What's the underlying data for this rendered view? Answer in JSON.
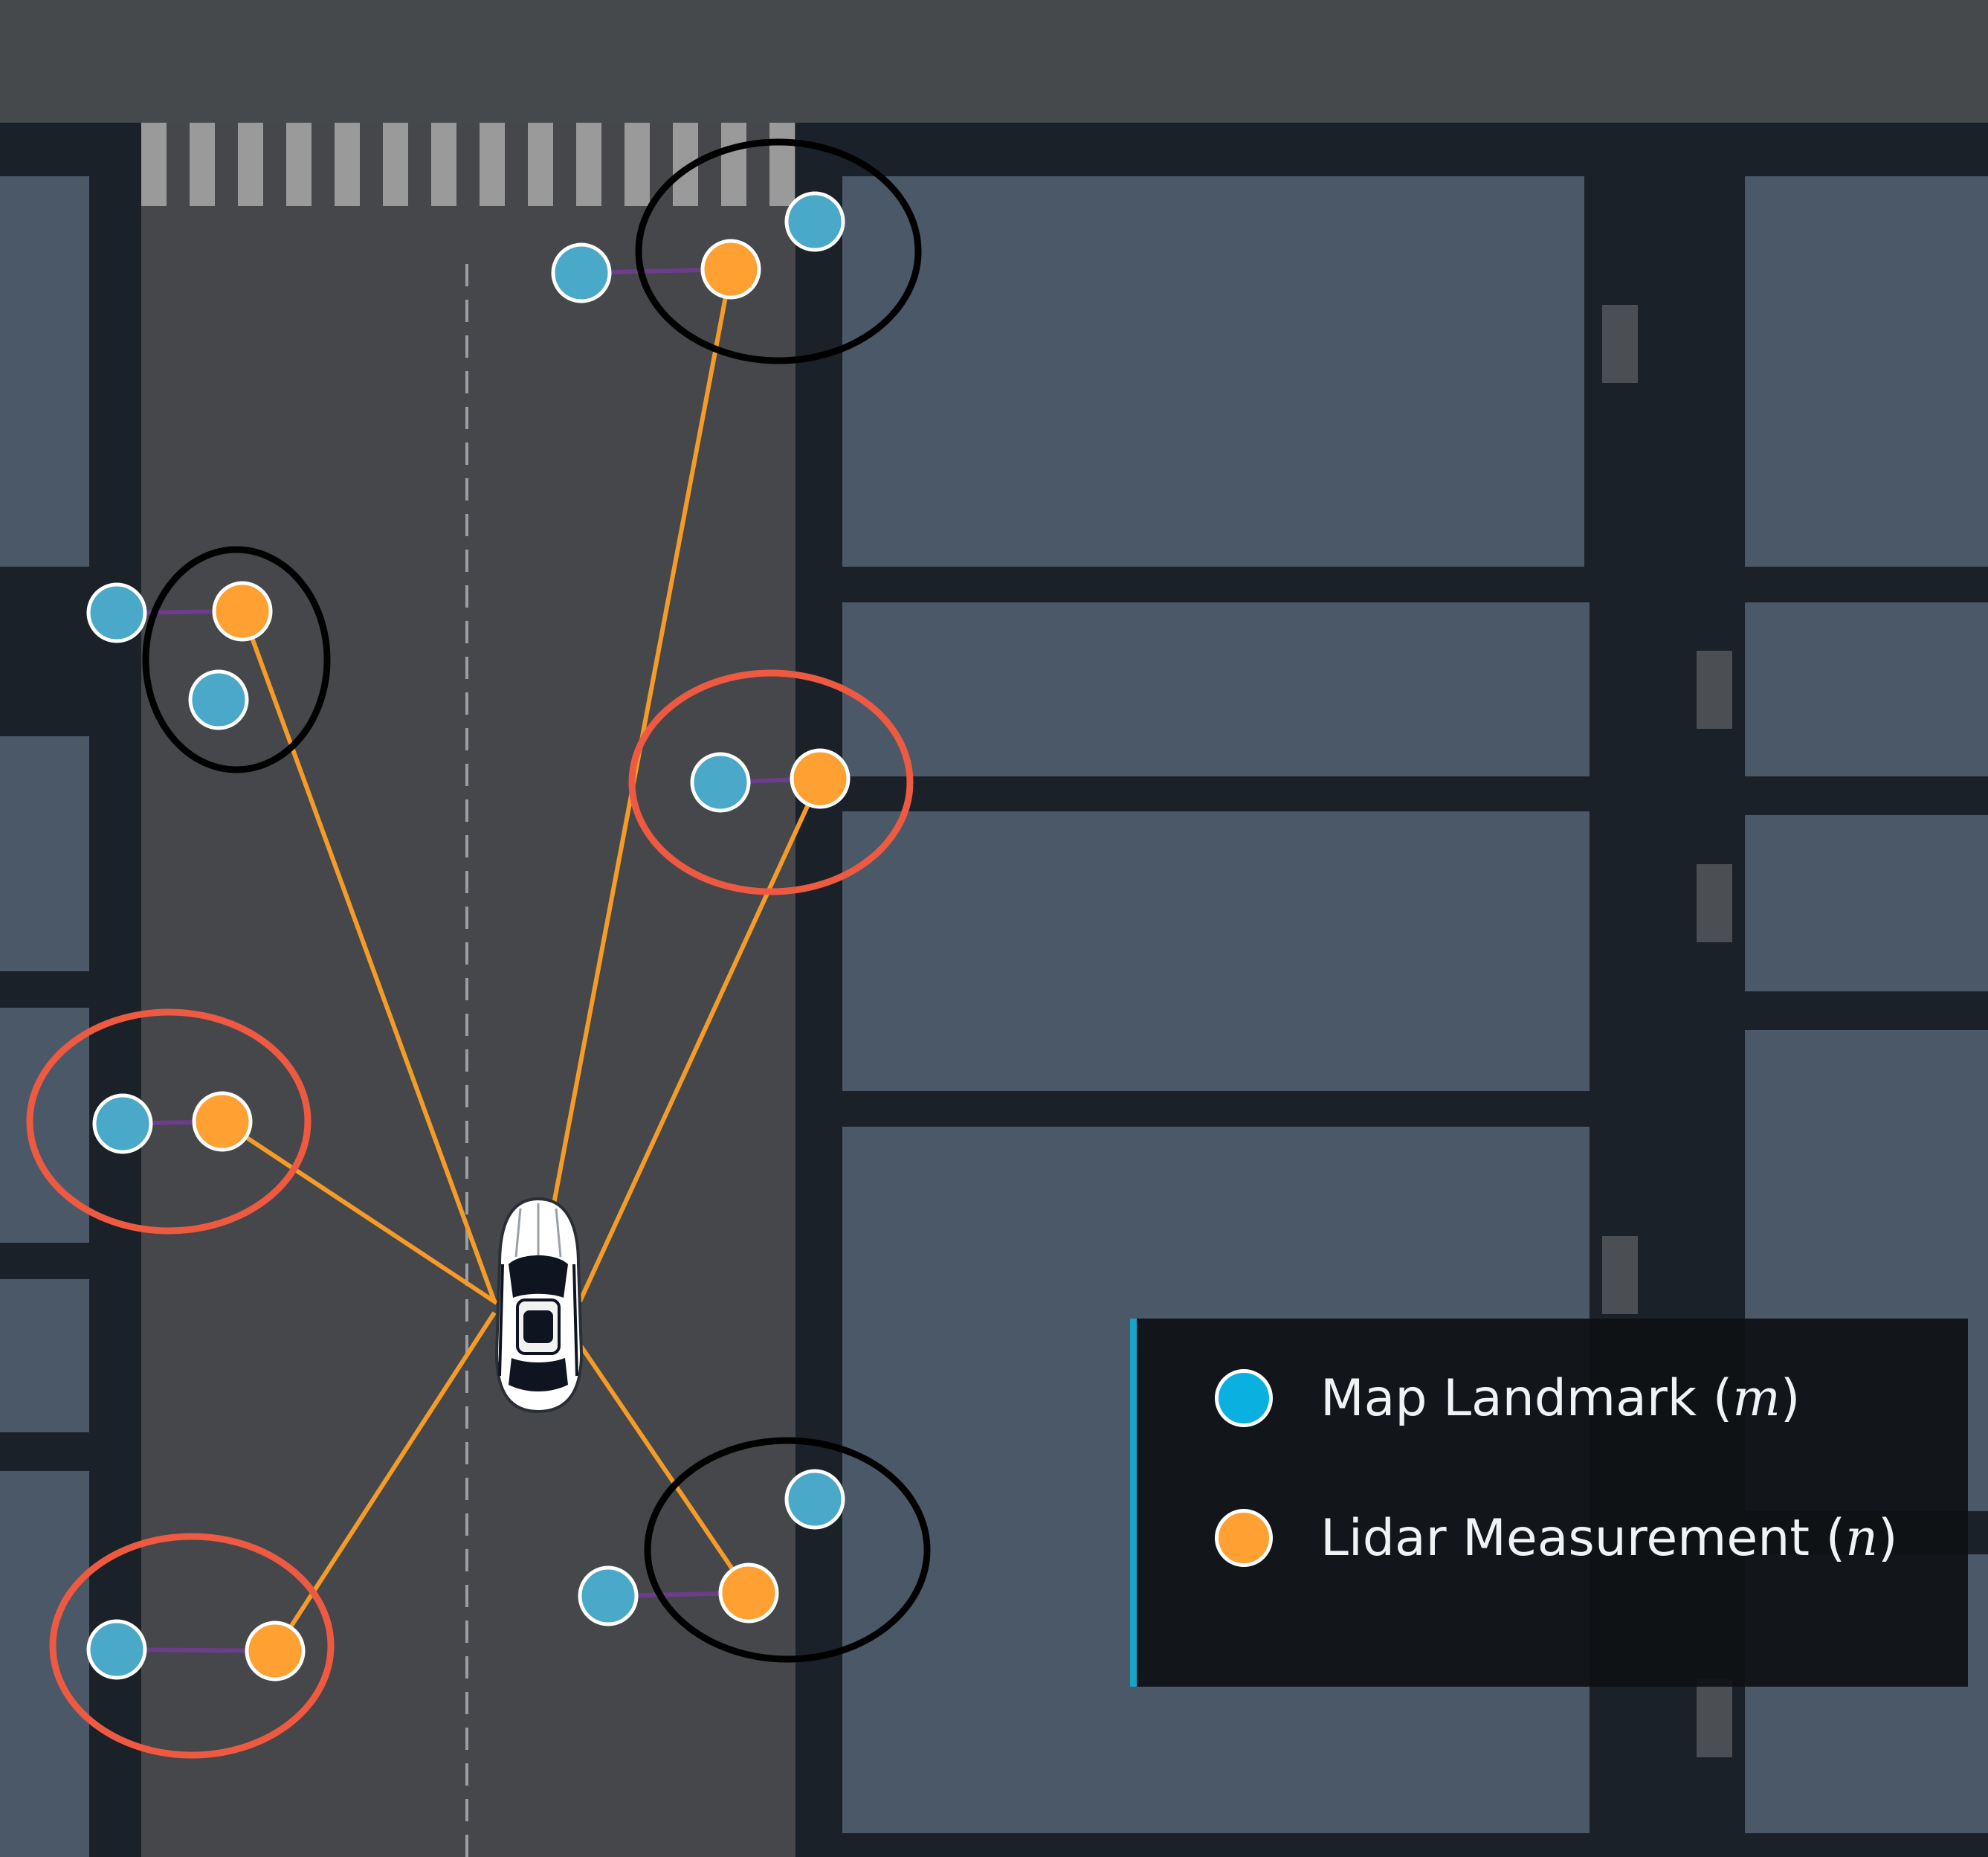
{
  "colors": {
    "landmark": "#4aa8c9",
    "measurement": "#ffa032",
    "range_line": "#f59b27",
    "association_line": "#6b3d8a",
    "ambiguous_circle": "#000000",
    "matched_circle": "#ee5a41",
    "legend_landmark_dot": "#0ab0e0",
    "legend_measurement_dot": "#ffa032",
    "legend_accent": "#1aa3c9"
  },
  "legend": {
    "items": [
      {
        "label": "Map Landmark (",
        "symbol": "m",
        "suffix": ")",
        "marker": "map-landmark"
      },
      {
        "label": "Lidar Measurement (",
        "symbol": "n",
        "suffix": ")",
        "marker": "lidar-measurement"
      }
    ]
  },
  "observation_groups": [
    {
      "status": "ambiguous",
      "landmarks": 2,
      "measurements": 1
    },
    {
      "status": "ambiguous",
      "landmarks": 2,
      "measurements": 1
    },
    {
      "status": "matched",
      "landmarks": 1,
      "measurements": 1
    },
    {
      "status": "matched",
      "landmarks": 1,
      "measurements": 1
    },
    {
      "status": "matched",
      "landmarks": 1,
      "measurements": 1
    },
    {
      "status": "ambiguous",
      "landmarks": 2,
      "measurements": 1
    }
  ]
}
